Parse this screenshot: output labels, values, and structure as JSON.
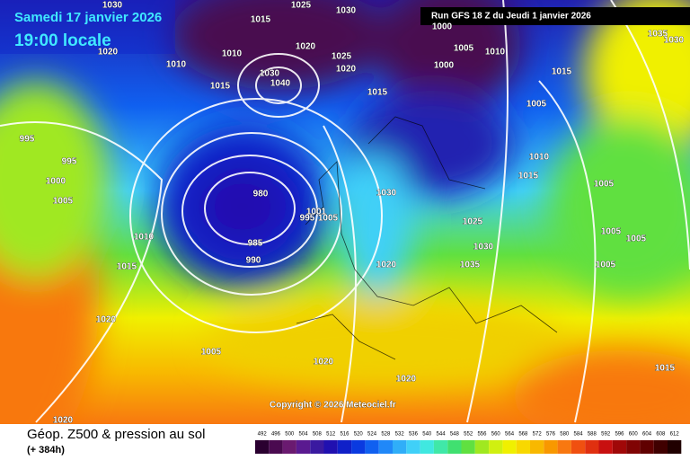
{
  "header": {
    "date": "Samedi 17 janvier 2026",
    "time": "19:00 locale",
    "run": "Run GFS 18 Z du Jeudi 1 janvier 2026"
  },
  "map": {
    "copyright": "Copyright © 2026 Meteociel.fr",
    "isobar_labels": [
      "1030",
      "1020",
      "1010",
      "1010",
      "1015",
      "1025",
      "1030",
      "1020",
      "1025",
      "1020",
      "1030",
      "1040",
      "1015",
      "1015",
      "1000",
      "1005",
      "1000",
      "1010",
      "1005",
      "1035",
      "1030",
      "1015",
      "995",
      "995",
      "1000",
      "1005",
      "980",
      "1001",
      "995",
      "1005",
      "1010",
      "985",
      "990",
      "1015",
      "1030",
      "1020",
      "1025",
      "1030",
      "1035",
      "1010",
      "1015",
      "1005",
      "1005",
      "1005",
      "1005",
      "1020",
      "1005",
      "1020",
      "1020",
      "1015",
      "1020"
    ]
  },
  "footer": {
    "title": "Géop. Z500 & pression au sol",
    "lead": "(+ 384h)"
  },
  "colorbar": {
    "values": [
      492,
      496,
      500,
      504,
      508,
      512,
      516,
      520,
      524,
      528,
      532,
      536,
      540,
      544,
      548,
      552,
      556,
      560,
      564,
      568,
      572,
      576,
      580,
      584,
      588,
      592,
      596,
      600,
      604,
      608,
      612
    ],
    "colors": [
      "#2a0030",
      "#4a0a50",
      "#6a1a70",
      "#5a1a90",
      "#3a1aa0",
      "#2010b0",
      "#1020c8",
      "#0a3ae0",
      "#1060f0",
      "#2088f8",
      "#30aef8",
      "#40d0f8",
      "#40e8e0",
      "#40e8a8",
      "#40e070",
      "#60e040",
      "#a0e820",
      "#d0f010",
      "#f0f000",
      "#f8d800",
      "#f8b800",
      "#f89800",
      "#f87810",
      "#f05010",
      "#e03010",
      "#c81010",
      "#a00808",
      "#800404",
      "#600000",
      "#400000",
      "#200000"
    ]
  }
}
